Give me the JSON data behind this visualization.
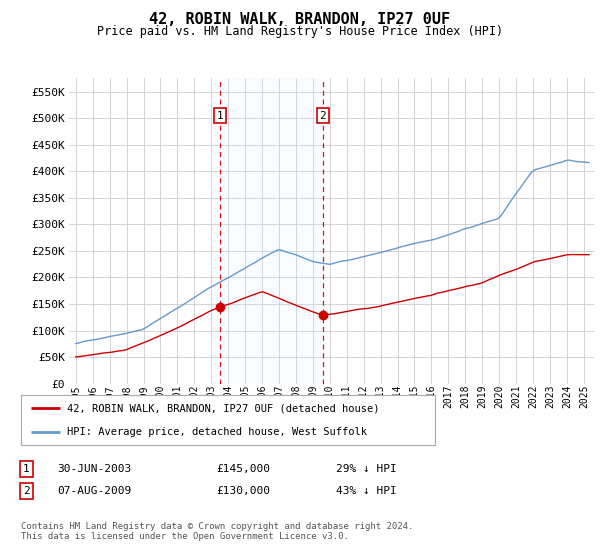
{
  "title": "42, ROBIN WALK, BRANDON, IP27 0UF",
  "subtitle": "Price paid vs. HM Land Registry's House Price Index (HPI)",
  "ylabel_ticks": [
    "£0",
    "£50K",
    "£100K",
    "£150K",
    "£200K",
    "£250K",
    "£300K",
    "£350K",
    "£400K",
    "£450K",
    "£500K",
    "£550K"
  ],
  "ytick_vals": [
    0,
    50000,
    100000,
    150000,
    200000,
    250000,
    300000,
    350000,
    400000,
    450000,
    500000,
    550000
  ],
  "ylim": [
    0,
    575000
  ],
  "sale1_date": 2003.5,
  "sale1_price": 145000,
  "sale2_date": 2009.58,
  "sale2_price": 130000,
  "legend_line1": "42, ROBIN WALK, BRANDON, IP27 0UF (detached house)",
  "legend_line2": "HPI: Average price, detached house, West Suffolk",
  "table_row1": [
    "1",
    "30-JUN-2003",
    "£145,000",
    "29% ↓ HPI"
  ],
  "table_row2": [
    "2",
    "07-AUG-2009",
    "£130,000",
    "43% ↓ HPI"
  ],
  "footnote": "Contains HM Land Registry data © Crown copyright and database right 2024.\nThis data is licensed under the Open Government Licence v3.0.",
  "hpi_color": "#6699cc",
  "price_color": "#cc0000",
  "shading_color": "#ddeeff",
  "vline_color": "#cc0000",
  "grid_color": "#cccccc",
  "bg_color": "#ffffff"
}
